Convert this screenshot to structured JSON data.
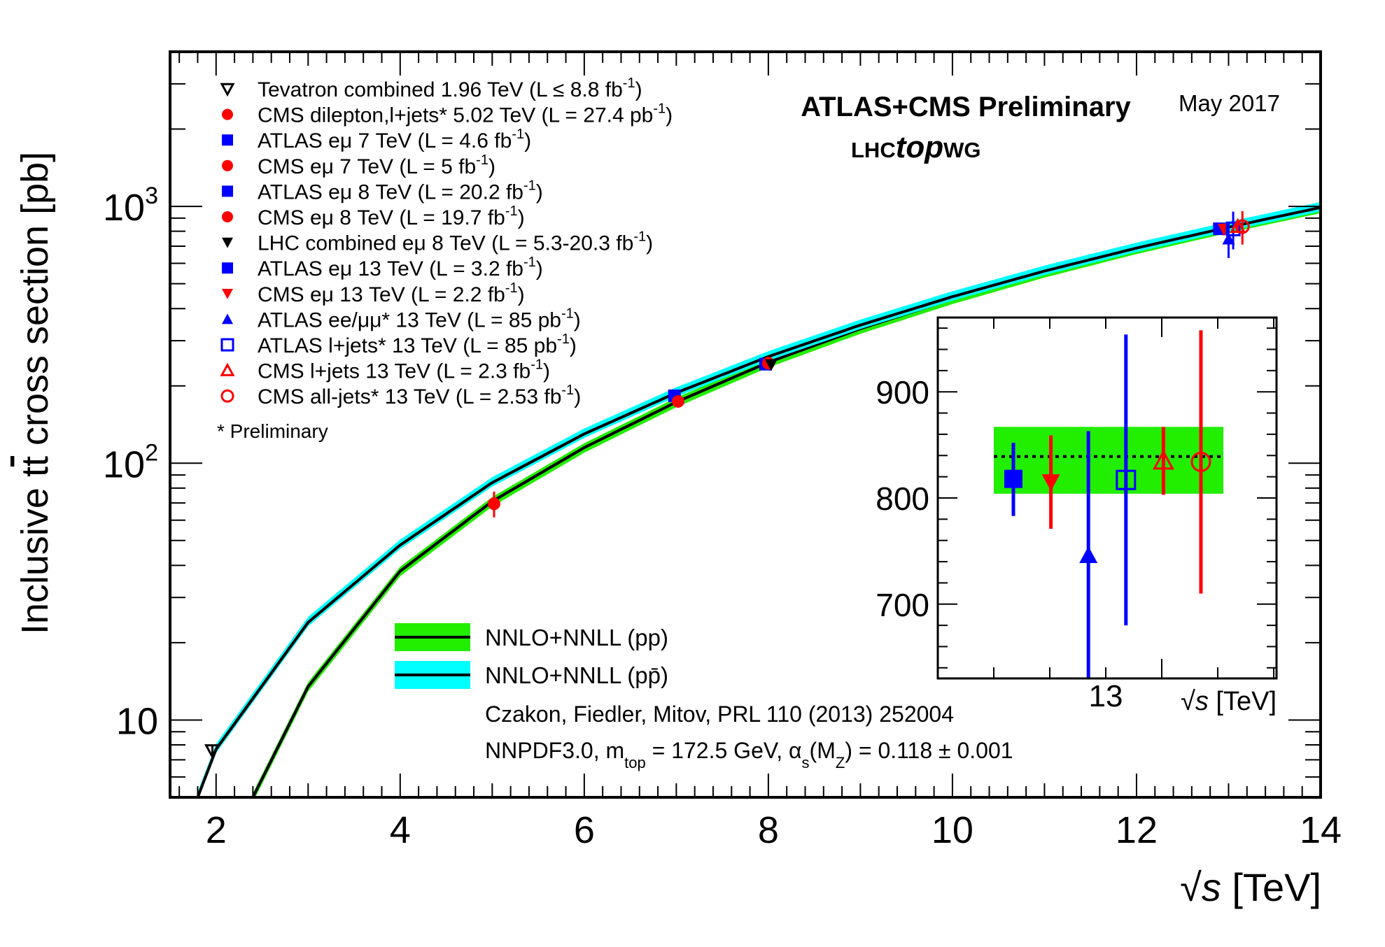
{
  "chart_data": {
    "type": "scatter",
    "title": "ATLAS+CMS Preliminary",
    "date": "May 2017",
    "logo": {
      "prefix": "LHC",
      "middle": "top",
      "suffix": "WG"
    },
    "xlabel": {
      "root": "√",
      "var": "s",
      "unit": " [TeV]"
    },
    "ylabel": {
      "before": "Inclusive t",
      "tbar": "t",
      "after": " cross section [pb]"
    },
    "x_scale": "linear",
    "y_scale": "log",
    "xlim": [
      1.5,
      14
    ],
    "ylim": [
      5,
      4000
    ],
    "x_ticks": [
      2,
      4,
      6,
      8,
      10,
      12,
      14
    ],
    "x_tick_labels": [
      "2",
      "4",
      "6",
      "8",
      "10",
      "12",
      "14"
    ],
    "y_tick_labels": [
      {
        "value": 1000,
        "base": "10",
        "exp": "3"
      },
      {
        "value": 100,
        "base": "10",
        "exp": "2"
      },
      {
        "value": 10,
        "base": "10",
        "exp": ""
      }
    ],
    "bands": [
      {
        "name": "NNLO+NNLL (pp)",
        "color": "#22ee00",
        "line_color": "#000000",
        "points": [
          [
            2.4,
            5
          ],
          [
            3,
            13.5
          ],
          [
            4,
            38
          ],
          [
            5,
            71
          ],
          [
            6,
            115
          ],
          [
            7,
            173
          ],
          [
            8,
            247
          ],
          [
            9,
            334
          ],
          [
            10,
            436
          ],
          [
            11,
            553
          ],
          [
            12,
            683
          ],
          [
            13,
            826
          ],
          [
            14,
            985
          ]
        ],
        "rel_lo": 0.045,
        "rel_hi": 0.04
      },
      {
        "name": "NNLO+NNLL (pp̄)",
        "color": "#00ffff",
        "line_color": "#000000",
        "points": [
          [
            1.8,
            5
          ],
          [
            2,
            7.7
          ],
          [
            3,
            24
          ],
          [
            4,
            48
          ],
          [
            5,
            84
          ],
          [
            6,
            130
          ],
          [
            7,
            188
          ],
          [
            8,
            260
          ],
          [
            9,
            345
          ],
          [
            10,
            445
          ],
          [
            11,
            560
          ],
          [
            12,
            688
          ],
          [
            13,
            830
          ],
          [
            14,
            990
          ]
        ],
        "rel_lo": 0.035,
        "rel_hi": 0.05
      }
    ],
    "series": [
      {
        "label": "Tevatron combined 1.96 TeV (L ≤ 8.8 fb",
        "sup": "-1",
        "tail": ")",
        "marker": "triangle-down-open",
        "color": "#000000",
        "points": [
          [
            1.96,
            7.6,
            0.4
          ]
        ]
      },
      {
        "label": "CMS dilepton,l+jets* 5.02 TeV (L = 27.4 pb",
        "sup": "-1",
        "tail": ")",
        "marker": "circle",
        "color": "#ff0000",
        "points": [
          [
            5.02,
            69.5,
            8
          ]
        ]
      },
      {
        "label": "ATLAS eμ 7 TeV (L = 4.6 fb",
        "sup": "-1",
        "tail": ")",
        "marker": "square",
        "color": "#0000ff",
        "points": [
          [
            6.98,
            183,
            7
          ]
        ]
      },
      {
        "label": "CMS eμ 7 TeV (L = 5 fb",
        "sup": "-1",
        "tail": ")",
        "marker": "circle",
        "color": "#ff0000",
        "points": [
          [
            7.02,
            174,
            7
          ]
        ]
      },
      {
        "label": "ATLAS eμ 8 TeV (L = 20.2 fb",
        "sup": "-1",
        "tail": ")",
        "marker": "square",
        "color": "#0000ff",
        "points": [
          [
            7.97,
            243,
            10
          ]
        ]
      },
      {
        "label": "CMS eμ 8 TeV (L = 19.7 fb",
        "sup": "-1",
        "tail": ")",
        "marker": "circle",
        "color": "#ff0000",
        "points": [
          [
            8.0,
            245,
            9
          ]
        ]
      },
      {
        "label": "LHC combined eμ 8 TeV (L = 5.3-20.3 fb",
        "sup": "-1",
        "tail": ")",
        "marker": "triangle-down",
        "color": "#000000",
        "points": [
          [
            8.03,
            242,
            8
          ]
        ]
      },
      {
        "label": "ATLAS eμ 13 TeV (L = 3.2 fb",
        "sup": "-1",
        "tail": ")",
        "marker": "square",
        "color": "#0000ff",
        "points": [
          [
            12.9,
            818,
            36
          ]
        ]
      },
      {
        "label": "CMS eμ 13 TeV (L = 2.2 fb",
        "sup": "-1",
        "tail": ")",
        "marker": "triangle-down",
        "color": "#ff0000",
        "points": [
          [
            12.95,
            815,
            44
          ]
        ]
      },
      {
        "label": "ATLAS ee/μμ* 13 TeV (L = 85 pb",
        "sup": "-1",
        "tail": ")",
        "marker": "triangle-up",
        "color": "#0000ff",
        "points": [
          [
            13.0,
            746,
            117
          ]
        ]
      },
      {
        "label": "ATLAS l+jets* 13 TeV (L = 85 pb",
        "sup": "-1",
        "tail": ")",
        "marker": "square-open",
        "color": "#0000ff",
        "points": [
          [
            13.05,
            817,
            137
          ]
        ]
      },
      {
        "label": "CMS l+jets 13 TeV (L = 2.3 fb",
        "sup": "-1",
        "tail": ")",
        "marker": "triangle-up-open",
        "color": "#ff0000",
        "points": [
          [
            13.1,
            835,
            32
          ]
        ]
      },
      {
        "label": "CMS all-jets* 13 TeV (L = 2.53 fb",
        "sup": "-1",
        "tail": ")",
        "marker": "circle-open",
        "color": "#ff0000",
        "points": [
          [
            13.15,
            834,
            124
          ]
        ]
      }
    ],
    "footnote": "* Preliminary",
    "band_legend": [
      {
        "label": "NNLO+NNLL (pp)",
        "band": 0
      },
      {
        "label": "NNLO+NNLL (pp̄)",
        "band": 1
      }
    ],
    "reference": "Czakon, Fiedler, Mitov, PRL 110 (2013) 252004",
    "pdf_note": {
      "a": "NNPDF3.0, m",
      "a_sub": "top",
      "b": " = 172.5 GeV, α",
      "b_sub": "s",
      "c": "(M",
      "c_sub": "Z",
      "d": ") = 0.118 ± 0.001"
    },
    "inset": {
      "ylim": [
        630,
        970
      ],
      "y_ticks": [
        700,
        800,
        900
      ],
      "x_tick_label": "13",
      "xlabel": {
        "root": "√",
        "var": "s",
        "unit": " [TeV]"
      },
      "band": {
        "center": 839,
        "lo": 804,
        "hi": 867,
        "color": "#22ee00"
      },
      "points": [
        {
          "series": 7,
          "value": 818,
          "lo": 783,
          "hi": 852
        },
        {
          "series": 8,
          "value": 815,
          "lo": 771,
          "hi": 859
        },
        {
          "series": 9,
          "value": 746,
          "lo": 629,
          "hi": 863
        },
        {
          "series": 10,
          "value": 817,
          "lo": 680,
          "hi": 954
        },
        {
          "series": 11,
          "value": 835,
          "lo": 803,
          "hi": 867
        },
        {
          "series": 12,
          "value": 834,
          "lo": 710,
          "hi": 958
        }
      ]
    }
  }
}
